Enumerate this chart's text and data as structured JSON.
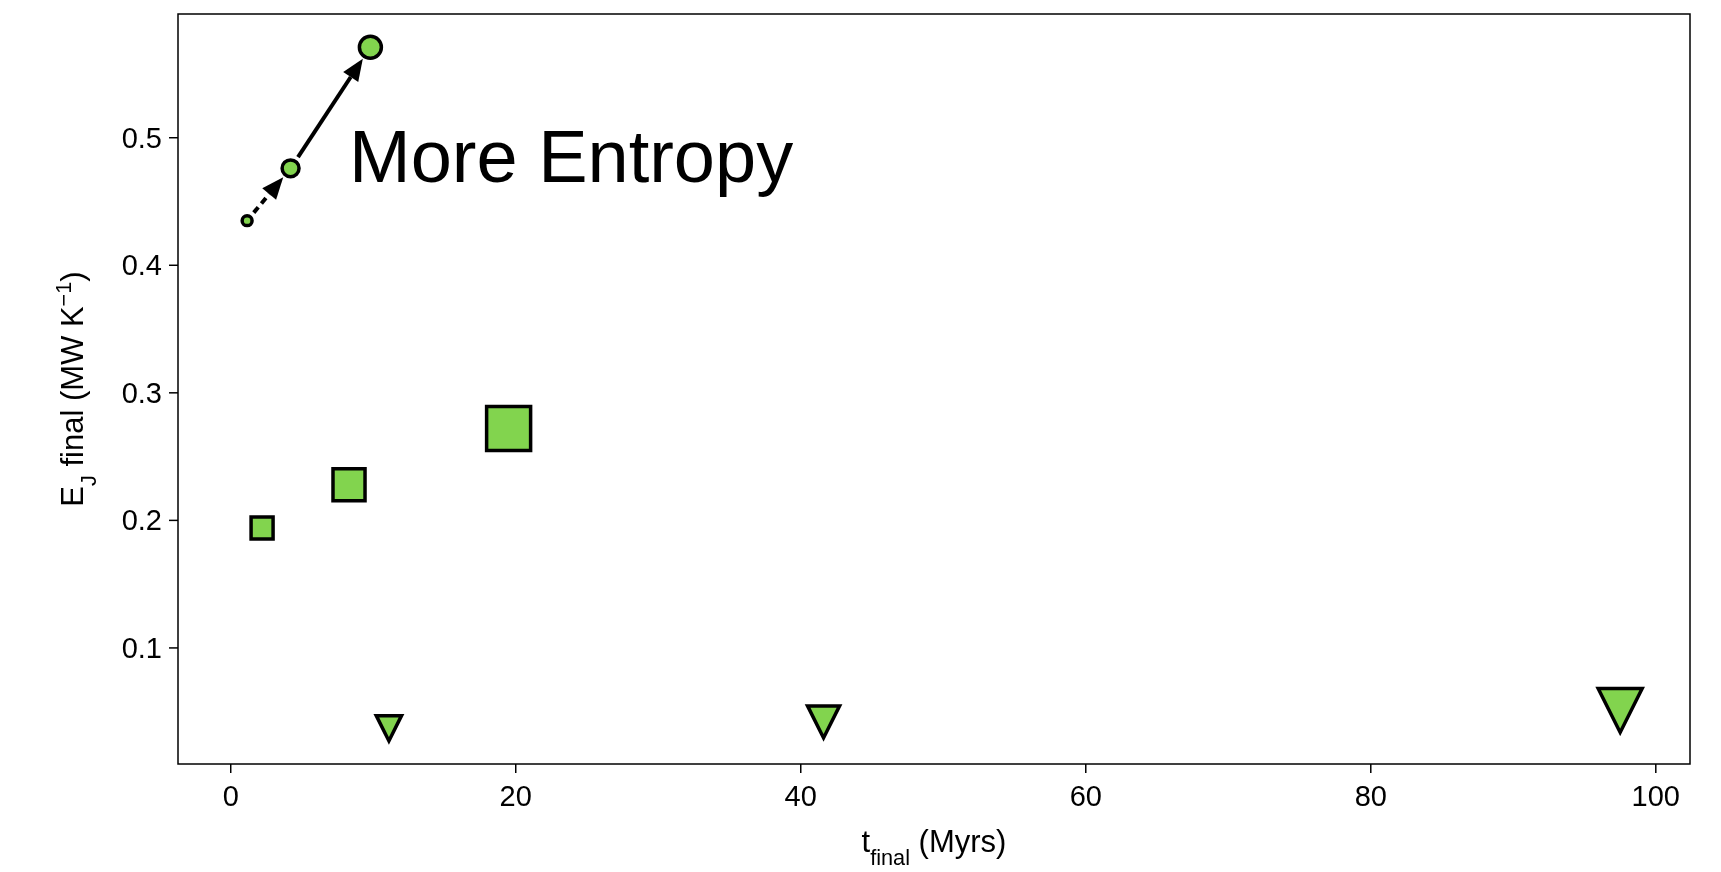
{
  "chart_data": {
    "type": "bubble",
    "xlabel": "t$_{final}$ (Myrs)",
    "ylabel": "E$_{J}$ final (MW K$^{−1}$)",
    "xlim": [
      -3.7,
      102.4
    ],
    "ylim": [
      0.009,
      0.597
    ],
    "xticks": [
      0,
      20,
      40,
      60,
      80,
      100
    ],
    "yticks": [
      0.1,
      0.2,
      0.3,
      0.4,
      0.5
    ],
    "grid": false,
    "annotations": [
      "More Entropy"
    ],
    "series": [
      {
        "marker": "circle",
        "color": "#82d44e",
        "x": [
          1.15,
          4.2,
          9.8
        ],
        "values": [
          0.435,
          0.476,
          0.571
        ],
        "sizes": [
          0.04,
          0.116,
          0.196
        ]
      },
      {
        "marker": "square",
        "color": "#82d44e",
        "x": [
          2.2,
          8.3,
          19.5
        ],
        "values": [
          0.194,
          0.228,
          0.272
        ],
        "sizes": [
          0.25,
          0.53,
          1
        ]
      },
      {
        "marker": "triangle",
        "color": "#82d44e",
        "x": [
          11.1,
          41.6,
          97.5
        ],
        "values": [
          0.037,
          0.042,
          0.051
        ],
        "sizes": [
          0.165,
          0.265,
          0.5
        ]
      }
    ]
  }
}
